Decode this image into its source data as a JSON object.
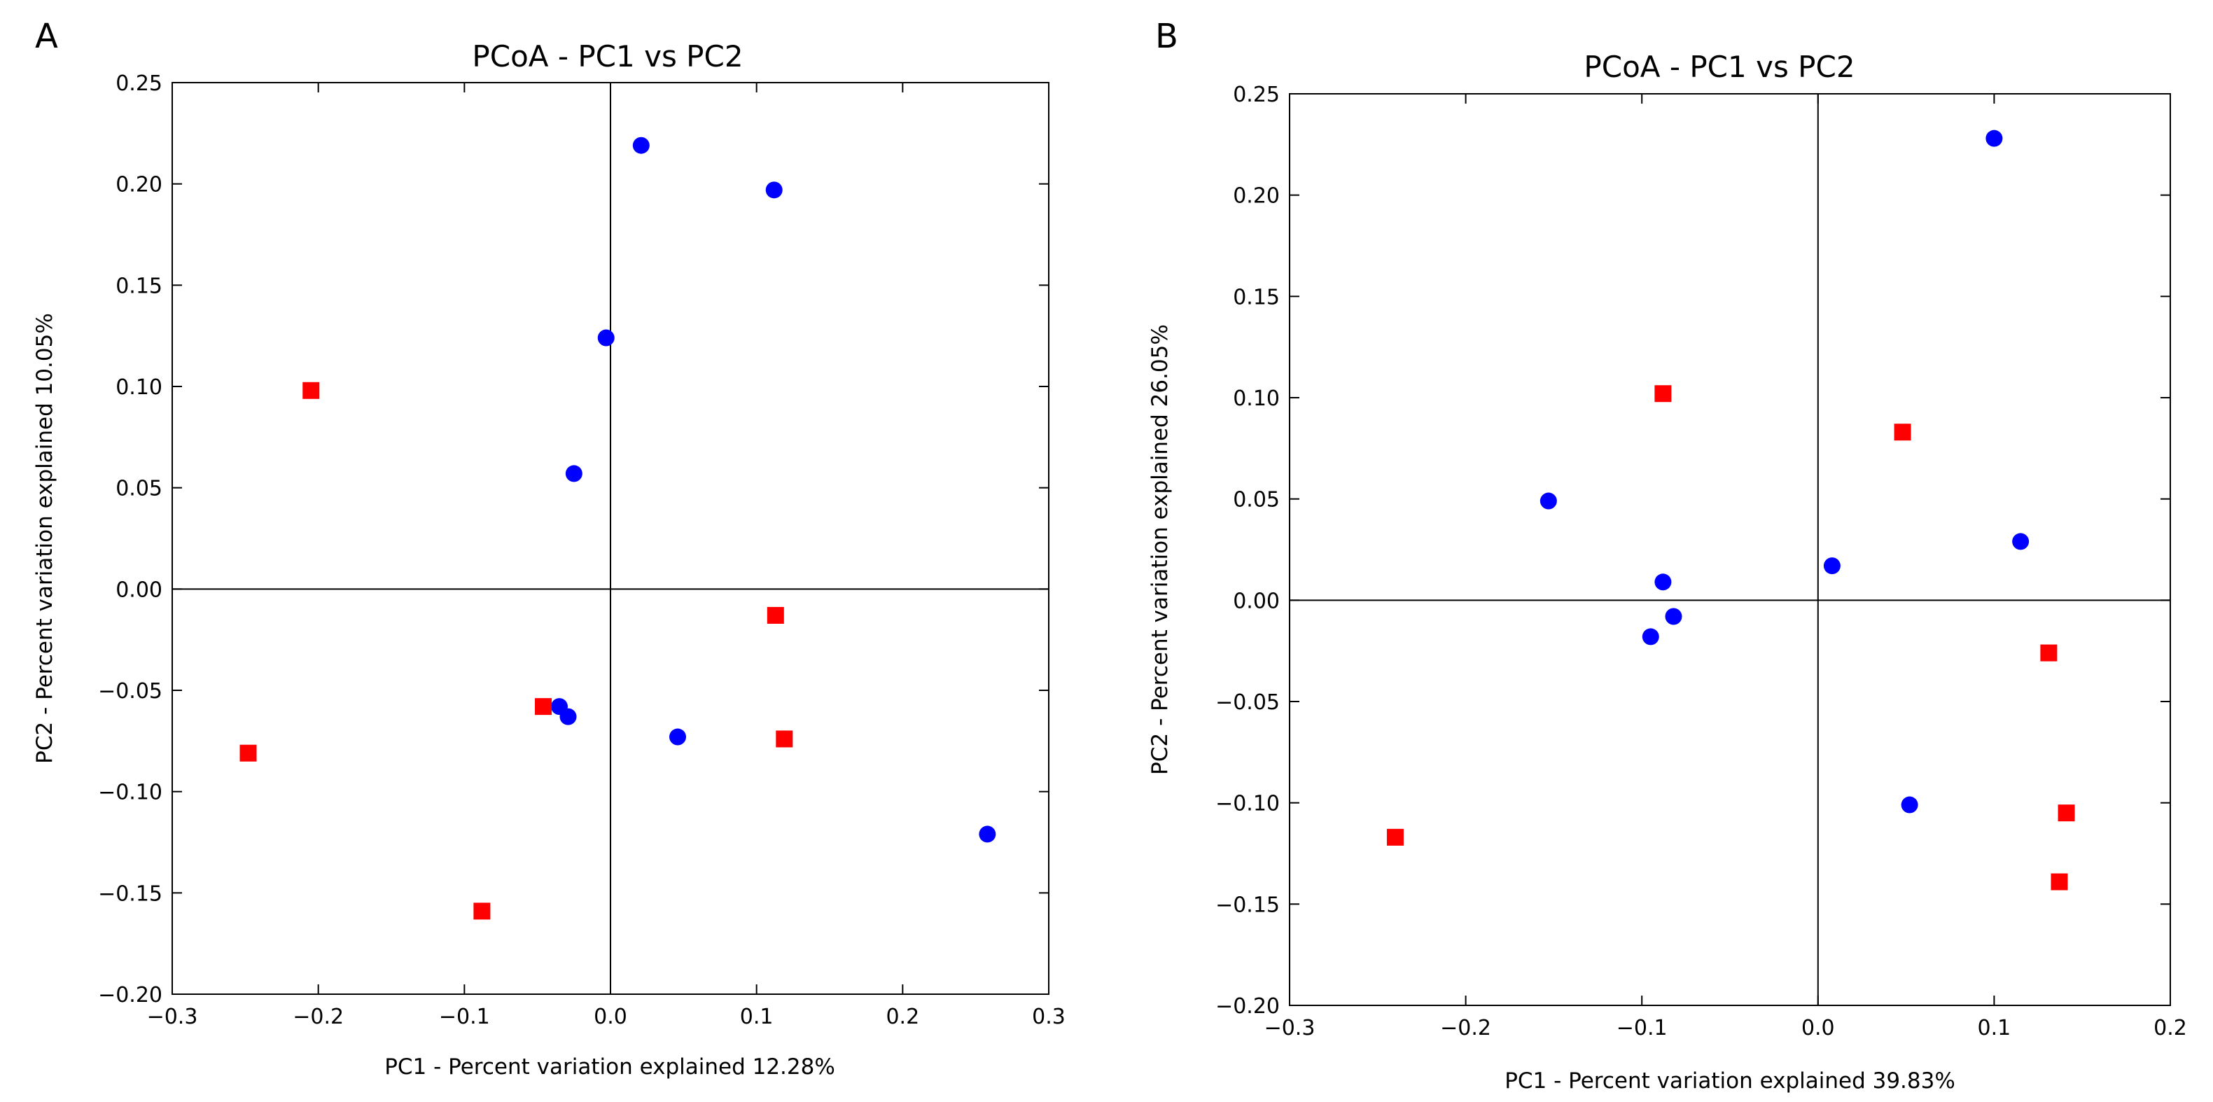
{
  "chart_data": [
    {
      "panel": "A",
      "type": "scatter",
      "title": "PCoA - PC1 vs PC2",
      "xlabel": "PC1 - Percent variation explained 12.28%",
      "ylabel": "PC2 - Percent variation explained 10.05%",
      "xlim": [
        -0.3,
        0.3
      ],
      "ylim": [
        -0.2,
        0.25
      ],
      "xticks": [
        -0.3,
        -0.2,
        -0.1,
        0.0,
        0.1,
        0.2,
        0.3
      ],
      "xtick_labels": [
        "−0.3",
        "−0.2",
        "−0.1",
        "0.0",
        "0.1",
        "0.2",
        "0.3"
      ],
      "yticks": [
        -0.2,
        -0.15,
        -0.1,
        -0.05,
        0.0,
        0.05,
        0.1,
        0.15,
        0.2,
        0.25
      ],
      "ytick_labels": [
        "−0.20",
        "−0.15",
        "−0.10",
        "−0.05",
        "0.00",
        "0.05",
        "0.10",
        "0.15",
        "0.20",
        "0.25"
      ],
      "series": [
        {
          "name": "blue circles",
          "marker": "circle",
          "color": "#0000ff",
          "points": [
            [
              0.021,
              0.219
            ],
            [
              0.112,
              0.197
            ],
            [
              -0.003,
              0.124
            ],
            [
              -0.025,
              0.057
            ],
            [
              -0.035,
              -0.058
            ],
            [
              -0.029,
              -0.063
            ],
            [
              0.046,
              -0.073
            ],
            [
              0.258,
              -0.121
            ]
          ]
        },
        {
          "name": "red squares",
          "marker": "square",
          "color": "#ff0000",
          "points": [
            [
              -0.205,
              0.098
            ],
            [
              0.113,
              -0.013
            ],
            [
              -0.046,
              -0.058
            ],
            [
              0.119,
              -0.074
            ],
            [
              -0.248,
              -0.081
            ],
            [
              -0.088,
              -0.159
            ]
          ]
        }
      ]
    },
    {
      "panel": "B",
      "type": "scatter",
      "title": "PCoA - PC1 vs PC2",
      "xlabel": "PC1 - Percent variation explained 39.83%",
      "ylabel": "PC2 - Percent variation explained 26.05%",
      "xlim": [
        -0.3,
        0.2
      ],
      "ylim": [
        -0.2,
        0.25
      ],
      "xticks": [
        -0.3,
        -0.2,
        -0.1,
        0.0,
        0.1,
        0.2
      ],
      "xtick_labels": [
        "−0.3",
        "−0.2",
        "−0.1",
        "0.0",
        "0.1",
        "0.2"
      ],
      "yticks": [
        -0.2,
        -0.15,
        -0.1,
        -0.05,
        0.0,
        0.05,
        0.1,
        0.15,
        0.2,
        0.25
      ],
      "ytick_labels": [
        "−0.20",
        "−0.15",
        "−0.10",
        "−0.05",
        "0.00",
        "0.05",
        "0.10",
        "0.15",
        "0.20",
        "0.25"
      ],
      "series": [
        {
          "name": "blue circles",
          "marker": "circle",
          "color": "#0000ff",
          "points": [
            [
              0.1,
              0.228
            ],
            [
              -0.153,
              0.049
            ],
            [
              0.115,
              0.029
            ],
            [
              0.008,
              0.017
            ],
            [
              -0.088,
              0.009
            ],
            [
              -0.082,
              -0.008
            ],
            [
              -0.095,
              -0.018
            ],
            [
              0.052,
              -0.101
            ]
          ]
        },
        {
          "name": "red squares",
          "marker": "square",
          "color": "#ff0000",
          "points": [
            [
              -0.088,
              0.102
            ],
            [
              0.048,
              0.083
            ],
            [
              0.131,
              -0.026
            ],
            [
              0.141,
              -0.105
            ],
            [
              -0.24,
              -0.117
            ],
            [
              0.137,
              -0.139
            ]
          ]
        }
      ]
    }
  ]
}
